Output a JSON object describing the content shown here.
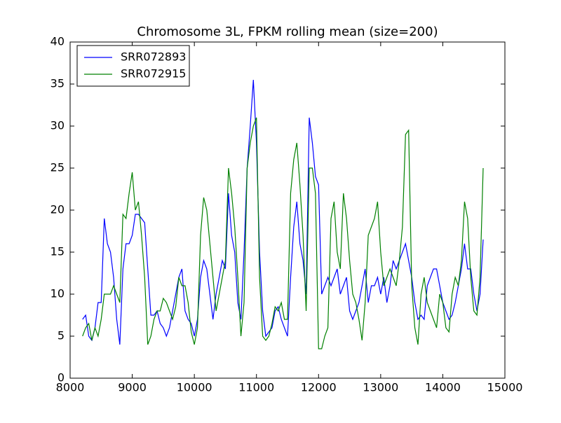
{
  "chart_data": {
    "type": "line",
    "title": "Chromosome 3L, FPKM rolling mean (size=200)",
    "x": [
      8200,
      8250,
      8300,
      8350,
      8400,
      8450,
      8500,
      8550,
      8600,
      8650,
      8700,
      8750,
      8800,
      8850,
      8900,
      8950,
      9000,
      9050,
      9100,
      9150,
      9200,
      9250,
      9300,
      9350,
      9400,
      9450,
      9500,
      9550,
      9600,
      9650,
      9700,
      9750,
      9800,
      9850,
      9900,
      9950,
      10000,
      10050,
      10100,
      10150,
      10200,
      10250,
      10300,
      10350,
      10400,
      10450,
      10500,
      10550,
      10600,
      10650,
      10700,
      10750,
      10800,
      10850,
      10900,
      10950,
      11000,
      11050,
      11100,
      11150,
      11200,
      11250,
      11300,
      11350,
      11400,
      11450,
      11500,
      11550,
      11600,
      11650,
      11700,
      11750,
      11800,
      11850,
      11900,
      11950,
      12000,
      12050,
      12100,
      12150,
      12200,
      12250,
      12300,
      12350,
      12400,
      12450,
      12500,
      12550,
      12600,
      12650,
      12700,
      12750,
      12800,
      12850,
      12900,
      12950,
      13000,
      13050,
      13100,
      13150,
      13200,
      13250,
      13300,
      13350,
      13400,
      13450,
      13500,
      13550,
      13600,
      13650,
      13700,
      13750,
      13800,
      13850,
      13900,
      13950,
      14000,
      14050,
      14100,
      14150,
      14200,
      14250,
      14300,
      14350,
      14400,
      14450,
      14500,
      14550,
      14600,
      14650
    ],
    "series": [
      {
        "name": "SRR072893",
        "color": "#0000ff",
        "values": [
          7,
          7.5,
          5,
          4.5,
          6,
          9,
          9,
          19,
          16,
          15,
          12,
          7,
          4,
          13,
          16,
          16,
          17,
          19.5,
          19.5,
          19,
          18.5,
          13,
          7.5,
          7.5,
          8,
          6.5,
          6,
          5,
          6,
          8,
          10,
          12,
          13,
          8,
          7,
          6.5,
          5,
          7,
          12,
          14,
          13,
          10,
          7,
          10,
          12,
          14,
          13,
          22,
          17,
          15,
          9,
          7,
          15,
          25,
          30,
          35.5,
          28,
          15,
          8,
          5,
          5.5,
          6,
          8,
          8.5,
          7,
          6,
          5,
          12,
          18,
          21,
          16,
          14,
          10,
          31,
          28,
          24,
          23,
          10,
          11,
          12,
          11,
          12,
          13,
          10,
          11,
          12,
          8,
          7,
          8,
          9,
          11,
          13,
          9,
          11,
          11,
          12,
          10,
          12,
          9,
          11,
          14,
          13,
          14,
          15,
          16,
          14,
          12,
          9,
          7,
          7.5,
          7,
          11,
          12,
          13,
          13,
          11,
          9,
          8,
          7,
          7.5,
          9,
          11,
          13,
          16,
          13,
          13,
          10,
          8,
          10,
          16.5
        ]
      },
      {
        "name": "SRR072915",
        "color": "#008000",
        "values": [
          5,
          6,
          6.5,
          4.5,
          6,
          5,
          7,
          10,
          10,
          10,
          11,
          10,
          9,
          19.5,
          19,
          22,
          24.5,
          20,
          21,
          17,
          12,
          4,
          5,
          7,
          8,
          8,
          9.5,
          9,
          8,
          7,
          8.5,
          12,
          11,
          11,
          9,
          5.5,
          4,
          6,
          17,
          21.5,
          20,
          16,
          12,
          8,
          10,
          12,
          14,
          25,
          22,
          18,
          12,
          5,
          9,
          25,
          28,
          30,
          31,
          12,
          5,
          4.5,
          5,
          6.5,
          8.5,
          8,
          9,
          7,
          7,
          22,
          26,
          28,
          23,
          17,
          8,
          25,
          25,
          22,
          3.5,
          3.5,
          5,
          6,
          19,
          21,
          15,
          13,
          22,
          19,
          14,
          10,
          9,
          7,
          4.5,
          9,
          17,
          18,
          19,
          21,
          15,
          11,
          12,
          13,
          12,
          11,
          14,
          18,
          29,
          29.5,
          11,
          6,
          4,
          10,
          12,
          9,
          8,
          7,
          6,
          10,
          9,
          6,
          5.5,
          10,
          12,
          11,
          14,
          21,
          19,
          12,
          8,
          7.5,
          12,
          25
        ]
      }
    ],
    "xlim": [
      8000,
      15000
    ],
    "ylim": [
      0,
      40
    ],
    "xticks": [
      8000,
      9000,
      10000,
      11000,
      12000,
      13000,
      14000,
      15000
    ],
    "yticks": [
      0,
      5,
      10,
      15,
      20,
      25,
      30,
      35,
      40
    ],
    "legend": "upper left"
  }
}
